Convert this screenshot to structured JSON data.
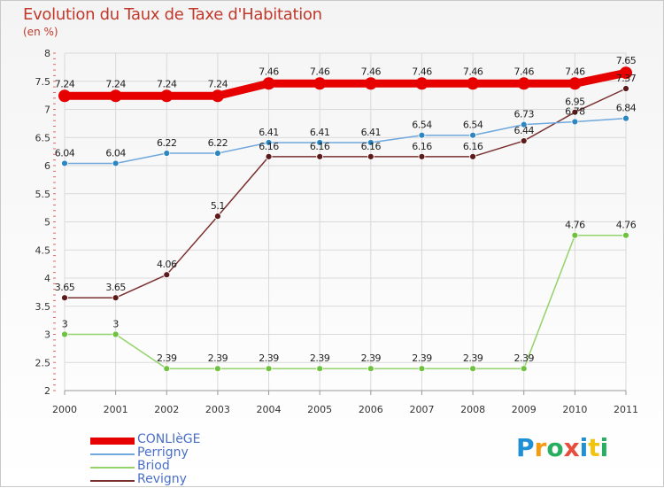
{
  "title": "Evolution du Taux de Taxe d'Habitation",
  "unit": "(en %)",
  "logo": {
    "letters": [
      {
        "ch": "P",
        "color": "#1f8fd6"
      },
      {
        "ch": "r",
        "color": "#f39c12"
      },
      {
        "ch": "o",
        "color": "#27ae60"
      },
      {
        "ch": "x",
        "color": "#e74c3c"
      },
      {
        "ch": "i",
        "color": "#1f8fd6"
      },
      {
        "ch": "t",
        "color": "#f1c40f"
      },
      {
        "ch": "i",
        "color": "#27ae60"
      }
    ]
  },
  "chart_data": {
    "type": "line",
    "x": [
      "2000",
      "2001",
      "2002",
      "2003",
      "2004",
      "2005",
      "2006",
      "2007",
      "2008",
      "2009",
      "2010",
      "2011"
    ],
    "ylim": [
      2,
      8
    ],
    "yticks": [
      "2",
      "2.5",
      "3",
      "3.5",
      "4",
      "4.5",
      "5",
      "5.5",
      "6",
      "6.5",
      "7",
      "7.5",
      "8"
    ],
    "grid": true,
    "legend_position": "bottom-left",
    "series": [
      {
        "name": "CONLIèGE",
        "color": "#e60000",
        "width": 9,
        "marker": 7,
        "values": [
          7.24,
          7.24,
          7.24,
          7.24,
          7.46,
          7.46,
          7.46,
          7.46,
          7.46,
          7.46,
          7.46,
          7.65
        ],
        "labels": [
          "7.24",
          "7.24",
          "7.24",
          "7.24",
          "7.46",
          "7.46",
          "7.46",
          "7.46",
          "7.46",
          "7.46",
          "7.46",
          "7.65"
        ]
      },
      {
        "name": "Perrigny",
        "color": "#6fa8dc",
        "dot": "#2e86c1",
        "width": 1.5,
        "marker": 3.5,
        "values": [
          6.04,
          6.04,
          6.22,
          6.22,
          6.41,
          6.41,
          6.41,
          6.54,
          6.54,
          6.73,
          6.78,
          6.84
        ],
        "labels": [
          "6.04",
          "6.04",
          "6.22",
          "6.22",
          "6.41",
          "6.41",
          "6.41",
          "6.54",
          "6.54",
          "6.73",
          "6.78",
          "6.84"
        ]
      },
      {
        "name": "Briod",
        "color": "#93d36a",
        "dot": "#6fc240",
        "width": 1.5,
        "marker": 3.5,
        "values": [
          3,
          3,
          2.39,
          2.39,
          2.39,
          2.39,
          2.39,
          2.39,
          2.39,
          2.39,
          4.76,
          4.76
        ],
        "labels": [
          "3",
          "3",
          "2.39",
          "2.39",
          "2.39",
          "2.39",
          "2.39",
          "2.39",
          "2.39",
          "2.39",
          "4.76",
          "4.76"
        ]
      },
      {
        "name": "Revigny",
        "color": "#7b3030",
        "dot": "#5c1a1a",
        "width": 1.5,
        "marker": 3.5,
        "values": [
          3.65,
          3.65,
          4.06,
          5.1,
          6.16,
          6.16,
          6.16,
          6.16,
          6.16,
          6.44,
          6.95,
          7.37
        ],
        "labels": [
          "3.65",
          "3.65",
          "4.06",
          "5.1",
          "6.16",
          "6.16",
          "6.16",
          "6.16",
          "6.16",
          "6.44",
          "6.95",
          "7.37"
        ]
      }
    ]
  }
}
